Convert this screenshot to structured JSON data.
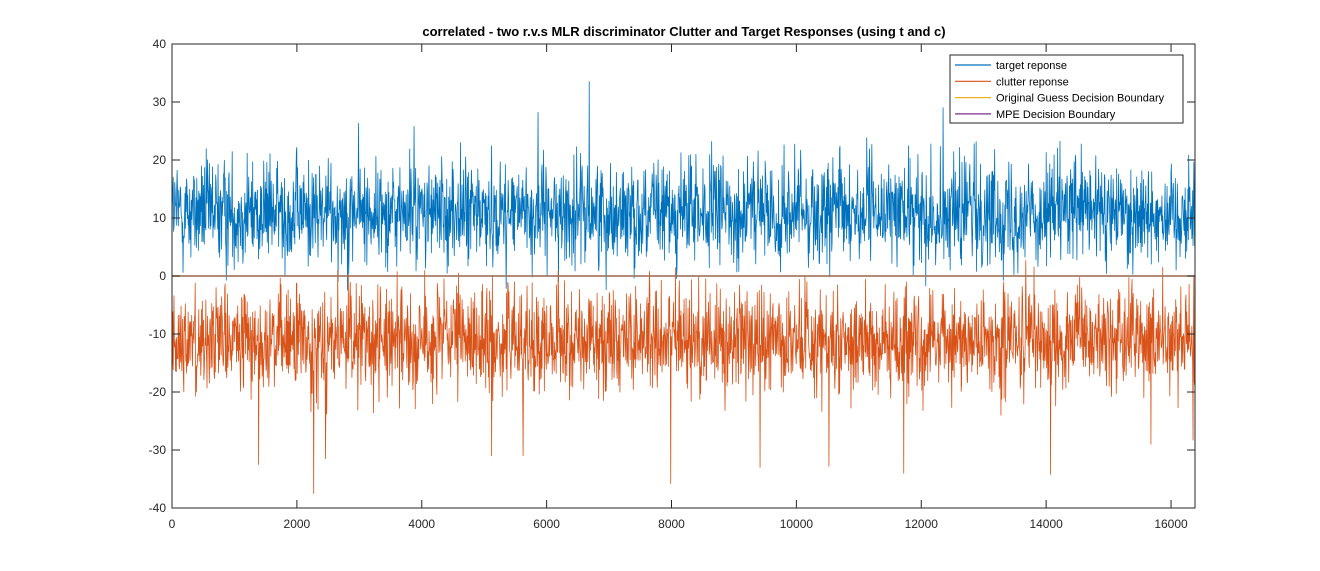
{
  "chart_data": {
    "type": "line",
    "title": "correlated - two r.v.s MLR discriminator Clutter and Target Responses (using t and c)",
    "xlabel": "",
    "ylabel": "",
    "xlim": [
      0,
      16384
    ],
    "ylim": [
      -40,
      40
    ],
    "xticks": [
      0,
      2000,
      4000,
      6000,
      8000,
      10000,
      12000,
      14000,
      16000
    ],
    "yticks": [
      -40,
      -30,
      -20,
      -10,
      0,
      10,
      20,
      30,
      40
    ],
    "grid": false,
    "legend_position": "top-right",
    "series": [
      {
        "name": "target reponse",
        "color": "#0072bd",
        "mean": 11,
        "band_low": 2,
        "band_high": 20,
        "peaks": [
          {
            "x": 6680,
            "y": 33.5
          },
          {
            "x": 5860,
            "y": 28.2
          },
          {
            "x": 12350,
            "y": 29
          },
          {
            "x": 2990,
            "y": 26.3
          },
          {
            "x": 3880,
            "y": 25.8
          }
        ]
      },
      {
        "name": "clutter reponse",
        "color": "#d95319",
        "mean": -11,
        "band_low": -20,
        "band_high": -2,
        "peaks": [
          {
            "x": 2270,
            "y": -37.5
          },
          {
            "x": 7990,
            "y": -35.8
          },
          {
            "x": 14070,
            "y": -34.2
          },
          {
            "x": 11720,
            "y": -34
          },
          {
            "x": 9420,
            "y": -33
          },
          {
            "x": 10520,
            "y": -32.8
          },
          {
            "x": 1390,
            "y": -32.5
          },
          {
            "x": 2460,
            "y": -31.5
          },
          {
            "x": 5620,
            "y": -31
          },
          {
            "x": 5120,
            "y": -31
          },
          {
            "x": 15680,
            "y": -29
          },
          {
            "x": 16350,
            "y": -28.3
          }
        ]
      },
      {
        "name": "Original Guess Decision Boundary",
        "color": "#edb120",
        "y": 0
      },
      {
        "name": "MPE Decision Boundary",
        "color": "#7e2f8e",
        "y": 0
      }
    ]
  }
}
